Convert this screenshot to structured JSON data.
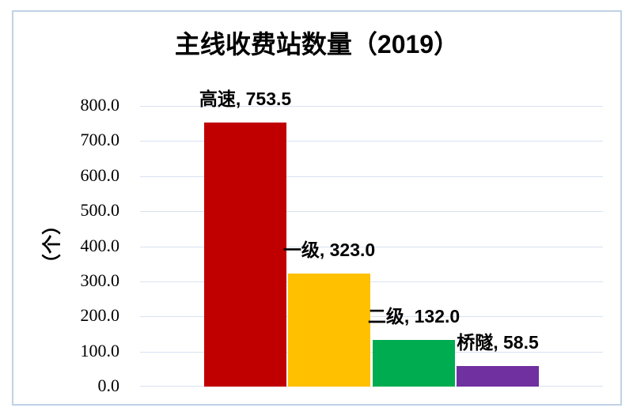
{
  "chart_data": {
    "type": "bar",
    "title": "主线收费站数量（2019）",
    "ylabel": "（个）",
    "xlabel": "",
    "categories": [
      "高速",
      "一级",
      "二级",
      "桥隧"
    ],
    "values": [
      753.5,
      323.0,
      132.0,
      58.5
    ],
    "data_labels": [
      "高速, 753.5",
      "一级, 323.0",
      "二级, 132.0",
      "桥隧, 58.5"
    ],
    "bar_colors": [
      "#c00000",
      "#ffc000",
      "#00ac50",
      "#7030a0"
    ],
    "ylim": [
      0,
      800
    ],
    "ytick_step": 100,
    "ytick_labels": [
      "0.0",
      "100.0",
      "200.0",
      "300.0",
      "400.0",
      "500.0",
      "600.0",
      "700.0",
      "800.0"
    ],
    "grid": true,
    "legend": "none",
    "gridline_color": "#d9e2f1",
    "border_color": "#bfd2e6",
    "title_color": "#000000",
    "label_color": "#000000",
    "background_color": "#ffffff"
  }
}
